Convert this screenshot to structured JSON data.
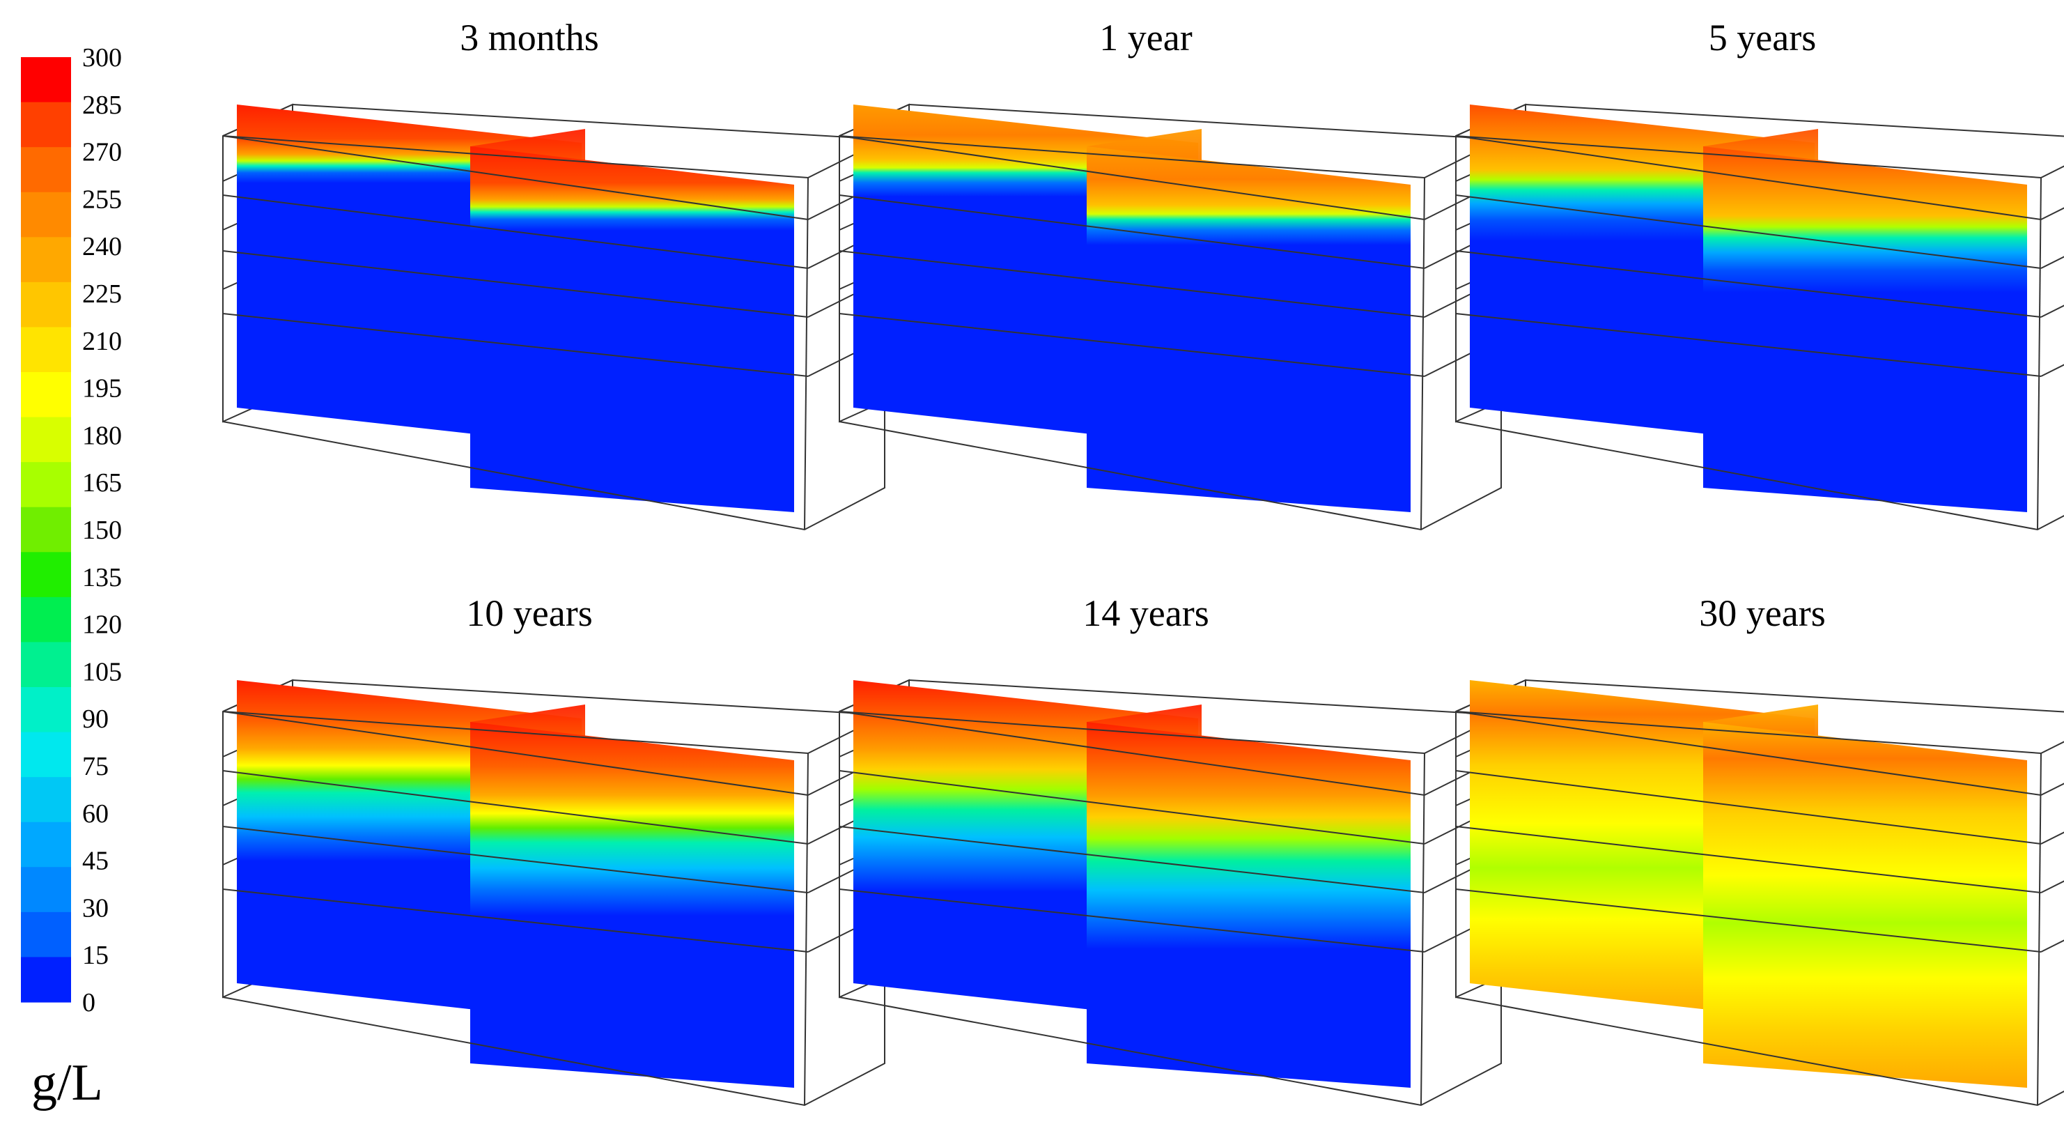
{
  "colorbar": {
    "unit": "g/L",
    "ticks": [
      "300",
      "285",
      "270",
      "255",
      "240",
      "225",
      "210",
      "195",
      "180",
      "165",
      "150",
      "135",
      "120",
      "105",
      "90",
      "75",
      "60",
      "45",
      "30",
      "15",
      "0"
    ],
    "colors": [
      "#ff0000",
      "#ff4000",
      "#ff6a00",
      "#ff8a00",
      "#ffa800",
      "#ffc600",
      "#ffe400",
      "#ffff00",
      "#d8ff00",
      "#a8ff00",
      "#70ee00",
      "#20ee00",
      "#00ee50",
      "#00f090",
      "#00f0c8",
      "#00e8ee",
      "#00c8f5",
      "#00a8ff",
      "#0088ff",
      "#0060ff",
      "#0020ff"
    ]
  },
  "panels": [
    {
      "title": "3 months"
    },
    {
      "title": "1 year"
    },
    {
      "title": "5 years"
    },
    {
      "title": "10 years"
    },
    {
      "title": "14 years"
    },
    {
      "title": "30 years"
    }
  ]
}
